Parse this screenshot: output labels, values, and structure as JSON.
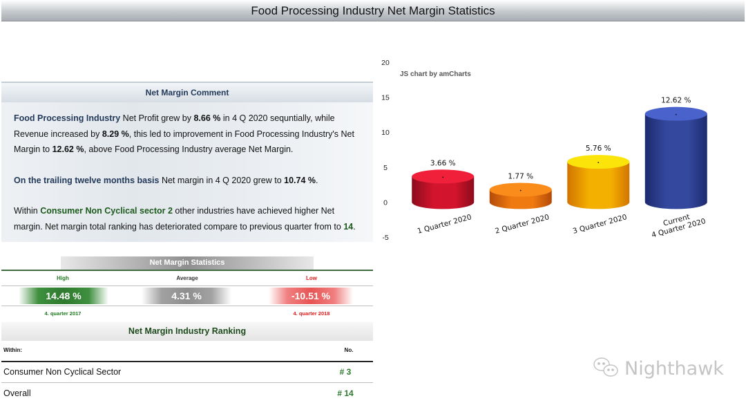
{
  "page_title": "Food Processing Industry Net Margin Statistics",
  "comment": {
    "heading": "Net Margin Comment",
    "p1": {
      "industry": "Food Processing Industry",
      "t1": " Net Profit grew by ",
      "profit_growth": "8.66 %",
      "t2": " in 4 Q 2020 sequntially, while Revenue increased by ",
      "revenue_growth": "8.29 %",
      "t3": ", this led to improvement in Food Processing Industry's Net Margin to ",
      "net_margin": "12.62 %",
      "t4": ", above Food Processing Industry average Net Margin."
    },
    "p2": {
      "label": "On the trailing twelve months basis",
      "t1": " Net margin in 4 Q 2020 grew to ",
      "ttm_margin": "10.74 %",
      "t2": "."
    },
    "p3": {
      "t1": "Within ",
      "sector_text": "Consumer Non Cyclical sector 2",
      "t2": " other industries have achieved higher Net margin. Net margin total ranking has deteriorated compare to previous quarter from to ",
      "rank": "14",
      "t3": "."
    }
  },
  "stats": {
    "heading": "Net Margin Statistics",
    "high": {
      "label": "High",
      "value": "14.48 %",
      "date": "4. quarter 2017"
    },
    "average": {
      "label": "Average",
      "value": "4.31 %"
    },
    "low": {
      "label": "Low",
      "value": "-10.51 %",
      "date": "4. quarter 2018"
    },
    "colors": {
      "high": "#1e7a1e",
      "low": "#e31a1a"
    }
  },
  "ranking": {
    "title": "Net Margin Industry Ranking",
    "col_within": "Within:",
    "col_no": "No.",
    "rows": [
      {
        "label": "Consumer Non Cyclical Sector",
        "no": "# 3"
      },
      {
        "label": "Overall",
        "no": "# 14"
      }
    ]
  },
  "chart_data": {
    "type": "bar",
    "credit": "JS chart by amCharts",
    "categories": [
      [
        "1 Quarter 2020"
      ],
      [
        "2 Quarter 2020"
      ],
      [
        "3 Quarter 2020"
      ],
      [
        "Current",
        "4 Quarter 2020"
      ]
    ],
    "values": [
      3.66,
      1.77,
      5.76,
      12.62
    ],
    "value_labels": [
      "3.66 %",
      "1.77 %",
      "5.76 %",
      "12.62 %"
    ],
    "yticks": [
      20,
      15,
      10,
      5,
      0,
      -5
    ],
    "ylim": [
      -5,
      20
    ],
    "colors": [
      {
        "top": "#f0203a",
        "side_light": "#d2142c",
        "side_dark": "#8c0c1c"
      },
      {
        "top": "#f98c1a",
        "side_light": "#ee7a10",
        "side_dark": "#b44a08"
      },
      {
        "top": "#fbe40a",
        "side_light": "#f4b000",
        "side_dark": "#d27400"
      },
      {
        "top": "#4a62cc",
        "side_light": "#34489e",
        "side_dark": "#1c2a6e"
      }
    ]
  },
  "watermark": {
    "text": "Nighthawk",
    "icon": "chat-bubbles-icon"
  }
}
